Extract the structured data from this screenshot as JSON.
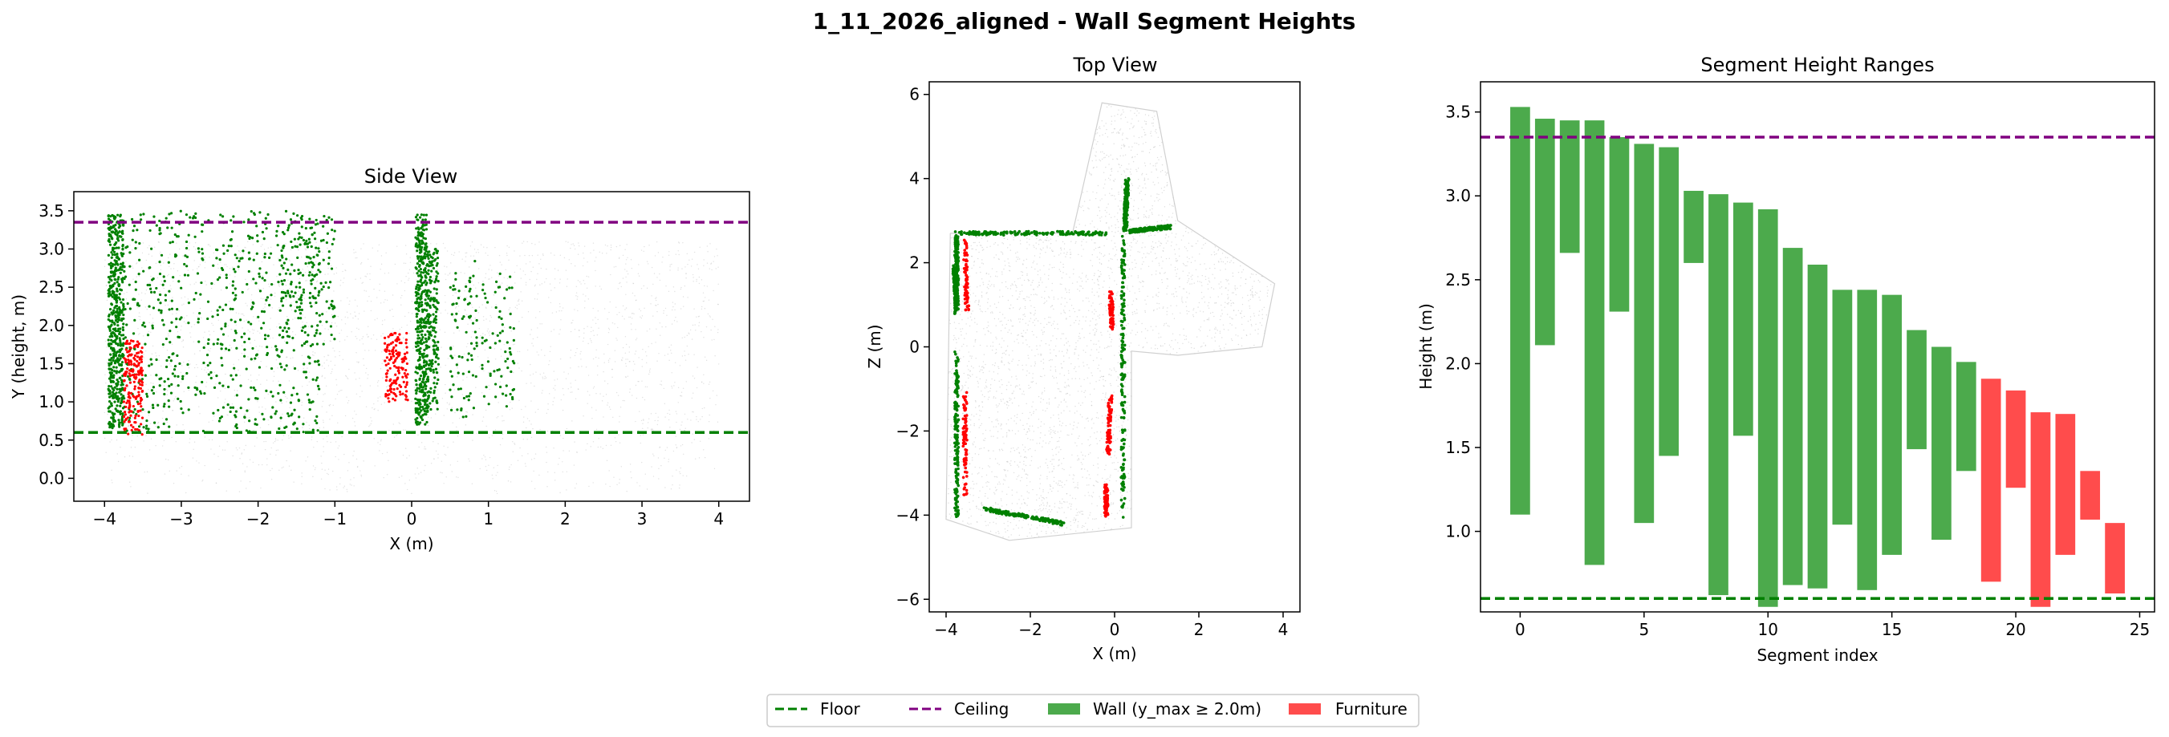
{
  "suptitle": "1_11_2026_aligned - Wall Segment Heights",
  "colors": {
    "wall": "#4caa4c",
    "furniture": "#ff4c4c",
    "floor": "#008000",
    "ceiling": "#800080",
    "wall_points": "#008000",
    "furniture_points": "#ff0000",
    "cloud": "#c8c8c8"
  },
  "legend": {
    "placement": "bottom-center",
    "items": [
      {
        "label": "Floor",
        "kind": "dashed-line",
        "color": "#008000"
      },
      {
        "label": "Ceiling",
        "kind": "dashed-line",
        "color": "#800080"
      },
      {
        "label": "Wall (y_max ≥ 2.0m)",
        "kind": "patch",
        "color": "#4caa4c"
      },
      {
        "label": "Furniture",
        "kind": "patch",
        "color": "#ff4c4c"
      }
    ]
  },
  "chart_data": [
    {
      "type": "scatter",
      "title": "Side View",
      "xlabel": "X (m)",
      "ylabel": "Y (height, m)",
      "xlim": [
        -4.4,
        4.4
      ],
      "ylim": [
        -0.3,
        3.75
      ],
      "xticks": [
        -4,
        -3,
        -2,
        -1,
        0,
        1,
        2,
        3,
        4
      ],
      "yticks": [
        0.0,
        0.5,
        1.0,
        1.5,
        2.0,
        2.5,
        3.0,
        3.5
      ],
      "xtick_labels": [
        "−4",
        "−3",
        "−2",
        "−1",
        "0",
        "1",
        "2",
        "3",
        "4"
      ],
      "ytick_labels": [
        "0.0",
        "0.5",
        "1.0",
        "1.5",
        "2.0",
        "2.5",
        "3.0",
        "3.5"
      ],
      "floor_y": 0.6,
      "ceiling_y": 3.35,
      "grid": false,
      "wall_regions": [
        {
          "x": [
            -3.95,
            -3.75
          ],
          "y": [
            0.65,
            3.45
          ],
          "n": 520
        },
        {
          "x": [
            0.05,
            0.2
          ],
          "y": [
            0.7,
            3.45
          ],
          "n": 380
        },
        {
          "x": [
            0.2,
            0.35
          ],
          "y": [
            0.85,
            3.0
          ],
          "n": 200
        },
        {
          "x": [
            -3.75,
            -1.2
          ],
          "y": [
            0.6,
            3.5
          ],
          "n": 620
        },
        {
          "x": [
            -1.7,
            -1.0
          ],
          "y": [
            1.7,
            3.45
          ],
          "n": 150
        },
        {
          "x": [
            0.5,
            0.85
          ],
          "y": [
            0.8,
            2.9
          ],
          "n": 80
        },
        {
          "x": [
            0.9,
            1.35
          ],
          "y": [
            0.9,
            2.7
          ],
          "n": 70
        }
      ],
      "furniture_regions": [
        {
          "x": [
            -3.75,
            -3.5
          ],
          "y": [
            0.55,
            1.8
          ],
          "n": 180
        },
        {
          "x": [
            -0.35,
            -0.05
          ],
          "y": [
            1.0,
            1.9
          ],
          "n": 140
        }
      ],
      "cloud_region": {
        "x": [
          -4.0,
          4.0
        ],
        "y": [
          -0.2,
          3.1
        ],
        "n": 2500
      }
    },
    {
      "type": "scatter",
      "title": "Top View",
      "xlabel": "X (m)",
      "ylabel": "Z (m)",
      "xlim": [
        -4.4,
        4.4
      ],
      "ylim": [
        -6.3,
        6.3
      ],
      "xticks": [
        -4,
        -2,
        0,
        2,
        4
      ],
      "yticks": [
        -6,
        -4,
        -2,
        0,
        2,
        4,
        6
      ],
      "xtick_labels": [
        "−4",
        "−2",
        "0",
        "2",
        "4"
      ],
      "ytick_labels": [
        "−6",
        "−4",
        "−2",
        "0",
        "2",
        "4",
        "6"
      ],
      "grid": false,
      "wall_segments": [
        [
          [
            -3.75,
            2.7
          ],
          [
            -0.2,
            2.7
          ]
        ],
        [
          [
            -3.75,
            2.65
          ],
          [
            -3.75,
            0.8
          ]
        ],
        [
          [
            -3.75,
            -0.1
          ],
          [
            -3.75,
            -4.0
          ]
        ],
        [
          [
            -3.1,
            -3.85
          ],
          [
            -1.2,
            -4.2
          ]
        ],
        [
          [
            0.2,
            2.65
          ],
          [
            0.2,
            -4.1
          ]
        ],
        [
          [
            0.25,
            2.75
          ],
          [
            0.3,
            4.0
          ]
        ],
        [
          [
            0.35,
            2.75
          ],
          [
            1.3,
            2.85
          ]
        ],
        [
          [
            -3.8,
            1.9
          ],
          [
            -3.75,
            1.0
          ]
        ]
      ],
      "furniture_segments": [
        [
          [
            -3.55,
            2.5
          ],
          [
            -3.5,
            0.8
          ]
        ],
        [
          [
            -3.55,
            -1.1
          ],
          [
            -3.55,
            -3.6
          ]
        ],
        [
          [
            -0.1,
            1.3
          ],
          [
            -0.05,
            0.4
          ]
        ],
        [
          [
            -0.1,
            -1.1
          ],
          [
            -0.15,
            -2.6
          ]
        ],
        [
          [
            -0.2,
            -3.3
          ],
          [
            -0.2,
            -4.0
          ]
        ]
      ],
      "cloud_outline": [
        [
          -3.9,
          2.7
        ],
        [
          -1.0,
          2.7
        ],
        [
          -0.3,
          5.8
        ],
        [
          1.0,
          5.6
        ],
        [
          1.5,
          3.0
        ],
        [
          3.8,
          1.5
        ],
        [
          3.5,
          0.0
        ],
        [
          1.5,
          -0.2
        ],
        [
          0.4,
          -0.1
        ],
        [
          0.4,
          -4.3
        ],
        [
          -2.5,
          -4.6
        ],
        [
          -4.0,
          -4.1
        ],
        [
          -3.9,
          2.7
        ]
      ],
      "cloud_n": 3000
    },
    {
      "type": "bar",
      "title": "Segment Height Ranges",
      "xlabel": "Segment index",
      "ylabel": "Height (m)",
      "xlim": [
        -1.6,
        25.6
      ],
      "ylim": [
        0.52,
        3.68
      ],
      "xticks": [
        0,
        5,
        10,
        15,
        20,
        25
      ],
      "yticks": [
        1.0,
        1.5,
        2.0,
        2.5,
        3.0,
        3.5
      ],
      "xtick_labels": [
        "0",
        "5",
        "10",
        "15",
        "20",
        "25"
      ],
      "ytick_labels": [
        "1.0",
        "1.5",
        "2.0",
        "2.5",
        "3.0",
        "3.5"
      ],
      "floor_y": 0.6,
      "ceiling_y": 3.35,
      "grid": false,
      "bars": [
        {
          "index": 0,
          "bottom": 1.1,
          "top": 3.53,
          "class": "wall"
        },
        {
          "index": 1,
          "bottom": 2.11,
          "top": 3.46,
          "class": "wall"
        },
        {
          "index": 2,
          "bottom": 2.66,
          "top": 3.45,
          "class": "wall"
        },
        {
          "index": 3,
          "bottom": 0.8,
          "top": 3.45,
          "class": "wall"
        },
        {
          "index": 4,
          "bottom": 2.31,
          "top": 3.35,
          "class": "wall"
        },
        {
          "index": 5,
          "bottom": 1.05,
          "top": 3.31,
          "class": "wall"
        },
        {
          "index": 6,
          "bottom": 1.45,
          "top": 3.29,
          "class": "wall"
        },
        {
          "index": 7,
          "bottom": 2.6,
          "top": 3.03,
          "class": "wall"
        },
        {
          "index": 8,
          "bottom": 0.62,
          "top": 3.01,
          "class": "wall"
        },
        {
          "index": 9,
          "bottom": 1.57,
          "top": 2.96,
          "class": "wall"
        },
        {
          "index": 10,
          "bottom": 0.55,
          "top": 2.92,
          "class": "wall"
        },
        {
          "index": 11,
          "bottom": 0.68,
          "top": 2.69,
          "class": "wall"
        },
        {
          "index": 12,
          "bottom": 0.66,
          "top": 2.59,
          "class": "wall"
        },
        {
          "index": 13,
          "bottom": 1.04,
          "top": 2.44,
          "class": "wall"
        },
        {
          "index": 14,
          "bottom": 0.65,
          "top": 2.44,
          "class": "wall"
        },
        {
          "index": 15,
          "bottom": 0.86,
          "top": 2.41,
          "class": "wall"
        },
        {
          "index": 16,
          "bottom": 1.49,
          "top": 2.2,
          "class": "wall"
        },
        {
          "index": 17,
          "bottom": 0.95,
          "top": 2.1,
          "class": "wall"
        },
        {
          "index": 18,
          "bottom": 1.36,
          "top": 2.01,
          "class": "wall"
        },
        {
          "index": 19,
          "bottom": 0.7,
          "top": 1.91,
          "class": "furniture"
        },
        {
          "index": 20,
          "bottom": 1.26,
          "top": 1.84,
          "class": "furniture"
        },
        {
          "index": 21,
          "bottom": 0.55,
          "top": 1.71,
          "class": "furniture"
        },
        {
          "index": 22,
          "bottom": 0.86,
          "top": 1.7,
          "class": "furniture"
        },
        {
          "index": 23,
          "bottom": 1.07,
          "top": 1.36,
          "class": "furniture"
        },
        {
          "index": 24,
          "bottom": 0.63,
          "top": 1.05,
          "class": "furniture"
        }
      ]
    }
  ]
}
